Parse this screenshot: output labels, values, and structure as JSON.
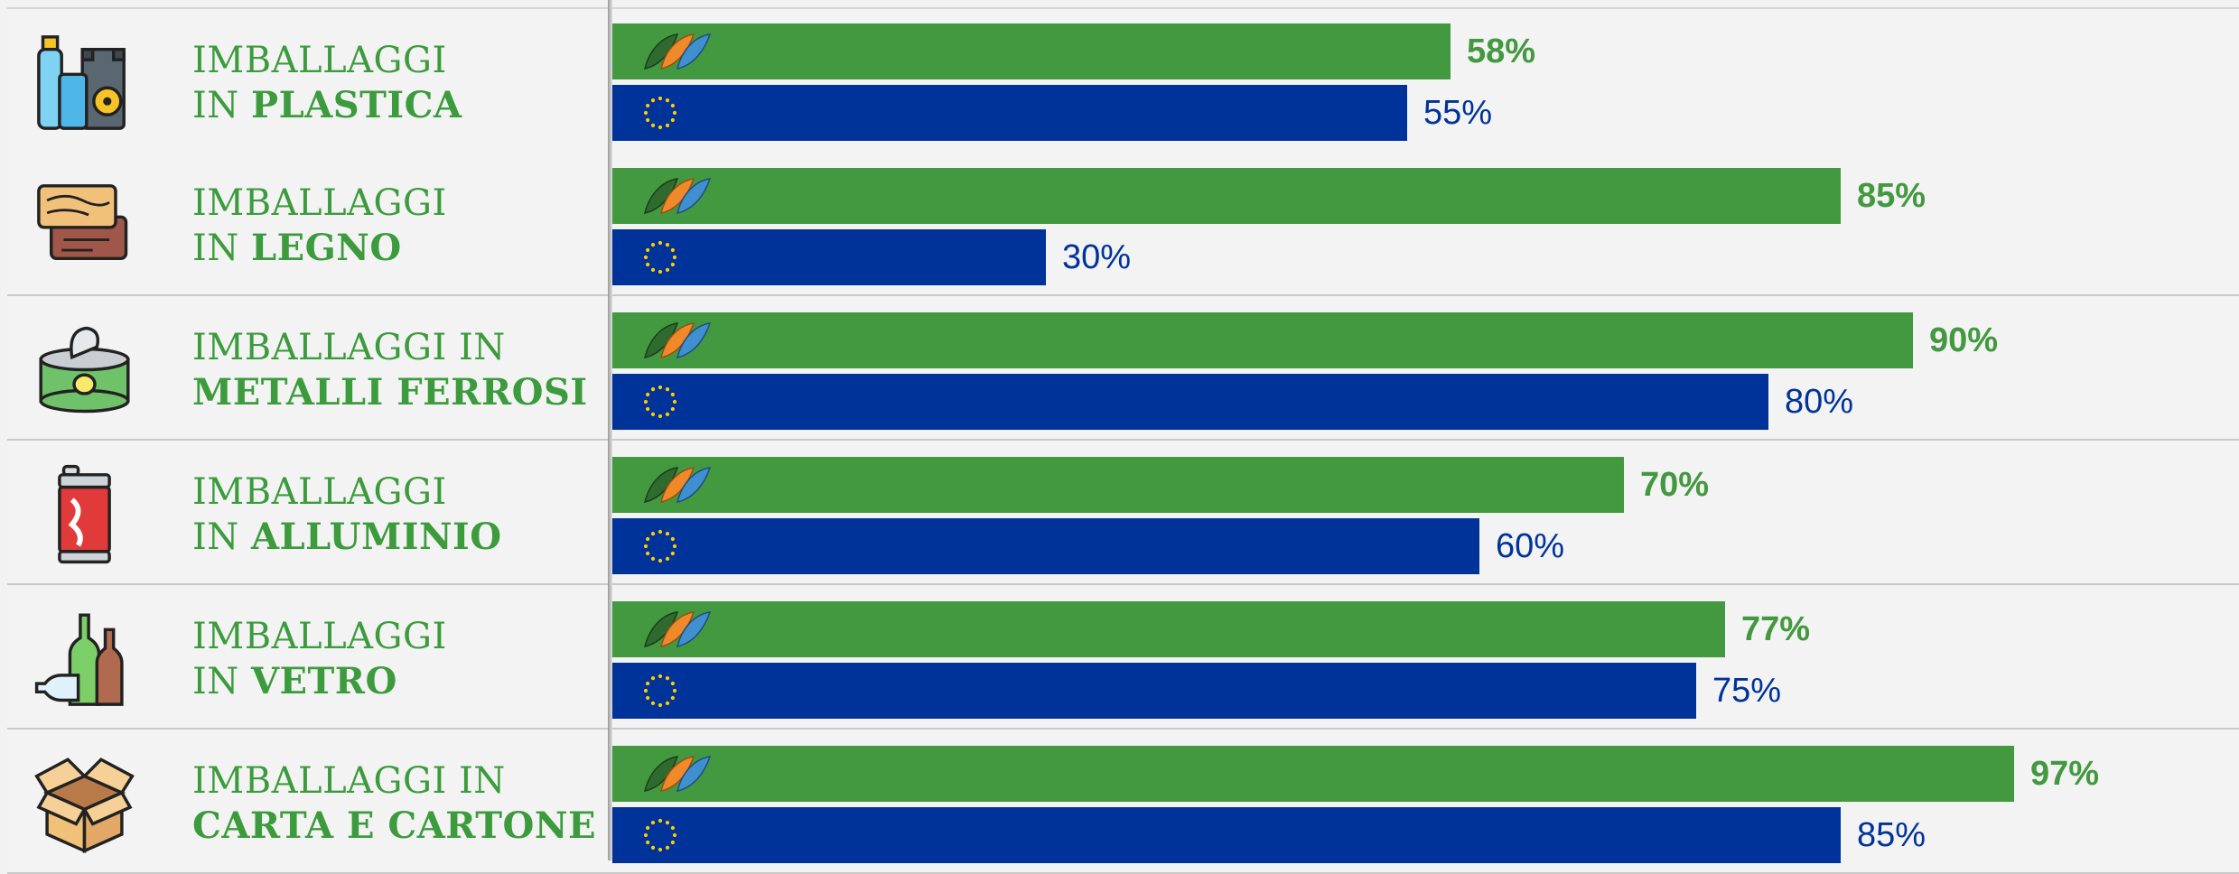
{
  "chart_data": {
    "type": "bar",
    "categories": [
      {
        "line1": "IMBALLAGGI",
        "line2_prefix": "IN ",
        "line2_bold": "PLASTICA",
        "line1_bold": "",
        "icon": "plastic-packaging-icon"
      },
      {
        "line1": "IMBALLAGGI",
        "line2_prefix": "IN ",
        "line2_bold": "LEGNO",
        "line1_bold": "",
        "icon": "wood-planks-icon"
      },
      {
        "line1": "IMBALLAGGI IN",
        "line2_prefix": "",
        "line2_bold": "METALLI FERROSI",
        "line1_bold": "",
        "icon": "tin-can-icon"
      },
      {
        "line1": "IMBALLAGGI",
        "line2_prefix": "IN ",
        "line2_bold": "ALLUMINIO",
        "line1_bold": "",
        "icon": "soda-can-icon"
      },
      {
        "line1": "IMBALLAGGI",
        "line2_prefix": "IN ",
        "line2_bold": "VETRO",
        "line1_bold": "",
        "icon": "glass-bottles-icon"
      },
      {
        "line1": "IMBALLAGGI IN",
        "line2_prefix": "",
        "line2_bold": "CARTA E CARTONE",
        "line1_bold": "",
        "icon": "cardboard-box-icon"
      }
    ],
    "series": [
      {
        "marker": "three-leaves-logo-icon",
        "color": "#43993f",
        "values": [
          58,
          85,
          90,
          70,
          77,
          97
        ],
        "labels": [
          "58%",
          "85%",
          "90%",
          "70%",
          "77%",
          "97%"
        ]
      },
      {
        "marker": "eu-stars-icon",
        "color": "#003399",
        "values": [
          55,
          30,
          80,
          60,
          75,
          85
        ],
        "labels": [
          "55%",
          "30%",
          "80%",
          "60%",
          "75%",
          "85%"
        ]
      }
    ],
    "xlim": [
      0,
      100
    ],
    "grid": false,
    "orientation": "horizontal"
  }
}
